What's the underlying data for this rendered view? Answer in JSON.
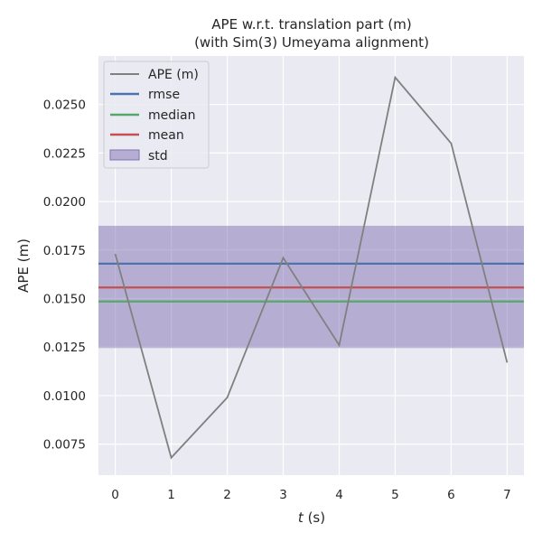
{
  "chart_data": {
    "type": "line",
    "title_line1": "APE w.r.t. translation part (m)",
    "title_line2": "(with Sim(3) Umeyama alignment)",
    "xlabel_var": "t",
    "xlabel_unit": " (s)",
    "ylabel": "APE (m)",
    "xlim": [
      -0.3,
      7.3
    ],
    "ylim": [
      0.0059,
      0.0275
    ],
    "xticks": [
      0,
      1,
      2,
      3,
      4,
      5,
      6,
      7
    ],
    "xtick_labels": [
      "0",
      "1",
      "2",
      "3",
      "4",
      "5",
      "6",
      "7"
    ],
    "yticks": [
      0.0075,
      0.01,
      0.0125,
      0.015,
      0.0175,
      0.02,
      0.0225,
      0.025
    ],
    "ytick_labels": [
      "0.0075",
      "0.0100",
      "0.0125",
      "0.0150",
      "0.0175",
      "0.0200",
      "0.0225",
      "0.0250"
    ],
    "grid": true,
    "legend_placement": "top-left",
    "series": [
      {
        "name": "APE (m)",
        "color": "#808080",
        "x": [
          0,
          1,
          2,
          3,
          4,
          5,
          6,
          7
        ],
        "y": [
          0.0173,
          0.0068,
          0.0099,
          0.0171,
          0.0126,
          0.0264,
          0.023,
          0.0117
        ]
      }
    ],
    "stats": {
      "rmse": {
        "name": "rmse",
        "value": 0.0168,
        "color": "#4c72b0"
      },
      "median": {
        "name": "median",
        "value": 0.01485,
        "color": "#55a868"
      },
      "mean": {
        "name": "mean",
        "value": 0.01557,
        "color": "#c44e52"
      },
      "std": {
        "name": "std",
        "lower": 0.01245,
        "upper": 0.01875,
        "color": "#8172b2"
      }
    }
  }
}
